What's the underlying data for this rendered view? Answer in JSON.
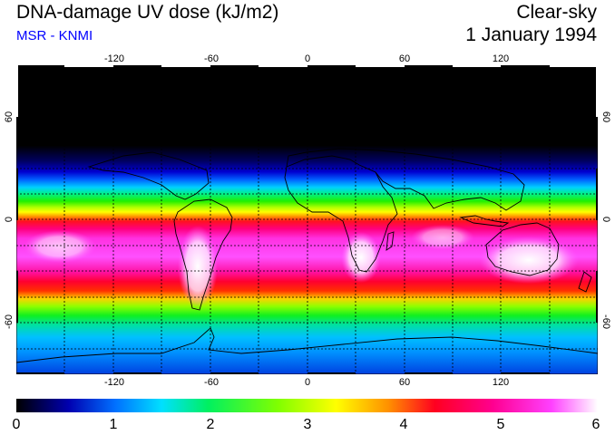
{
  "header": {
    "title": "DNA-damage UV dose (kJ/m2)",
    "subtitle": "MSR - KNMI",
    "sky_condition": "Clear-sky",
    "date": "1 January 1994"
  },
  "map": {
    "lon_ticks": [
      "-120",
      "-60",
      "0",
      "60",
      "120"
    ],
    "lat_ticks_left": [
      "60",
      "0",
      "-60"
    ],
    "lat_ticks_right": [
      "60",
      "0",
      "-60"
    ],
    "lon_range": [
      -180,
      180
    ],
    "lat_range": [
      -90,
      90
    ],
    "grid_lon_step": 30,
    "grid_lat_step": 15
  },
  "colorbar": {
    "tick_labels": [
      "0",
      "1",
      "2",
      "3",
      "4",
      "5",
      "6"
    ],
    "range": [
      0,
      6
    ]
  },
  "colors": {
    "scale": [
      "#000000",
      "#0000b0",
      "#0070ff",
      "#00e0ff",
      "#00f060",
      "#80ff00",
      "#ffff00",
      "#ff9000",
      "#ff0020",
      "#ff0090",
      "#ff40ff",
      "#ffffff"
    ]
  }
}
